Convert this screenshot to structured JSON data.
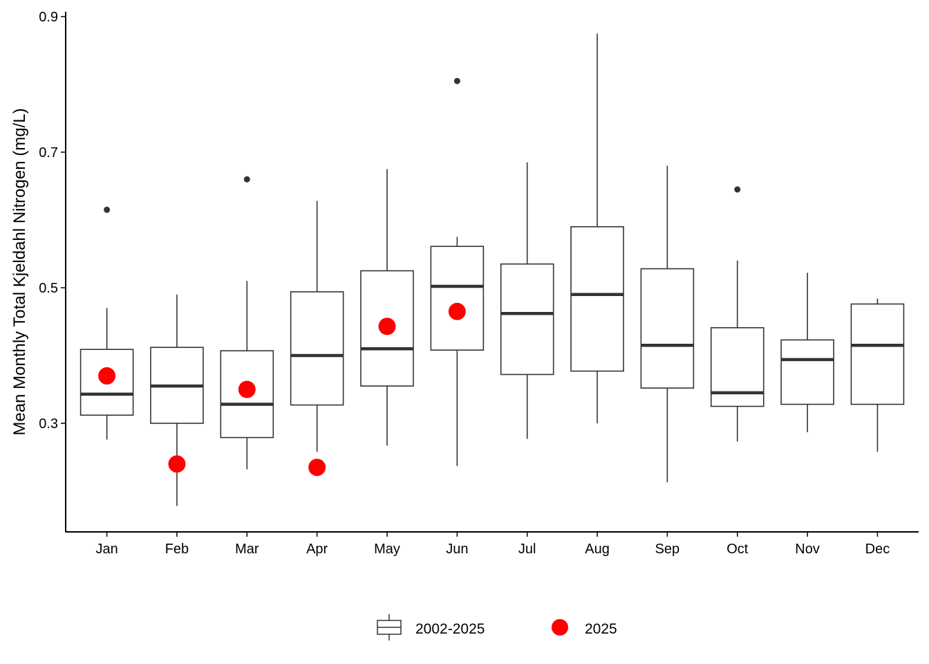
{
  "chart_data": {
    "type": "boxplot",
    "title": "",
    "xlabel": "",
    "ylabel": "Mean Monthly Total Kjeldahl Nitrogen (mg/L)",
    "ylim": [
      0.14,
      0.9
    ],
    "yticks": [
      0.3,
      0.5,
      0.7,
      0.9
    ],
    "ytick_labels": [
      "0.3",
      "0.5",
      "0.7",
      "0.9"
    ],
    "grid": false,
    "legend_position": "bottom",
    "categories": [
      "Jan",
      "Feb",
      "Mar",
      "Apr",
      "May",
      "Jun",
      "Jul",
      "Aug",
      "Sep",
      "Oct",
      "Nov",
      "Dec"
    ],
    "series": [
      {
        "name": "2002-2025",
        "kind": "boxplot",
        "color": "#333333",
        "boxes": [
          {
            "min": 0.276,
            "q1": 0.312,
            "median": 0.343,
            "q3": 0.409,
            "max": 0.47,
            "outliers": [
              0.615
            ]
          },
          {
            "min": 0.178,
            "q1": 0.3,
            "median": 0.355,
            "q3": 0.412,
            "max": 0.49,
            "outliers": []
          },
          {
            "min": 0.232,
            "q1": 0.279,
            "median": 0.328,
            "q3": 0.407,
            "max": 0.51,
            "outliers": [
              0.66
            ]
          },
          {
            "min": 0.258,
            "q1": 0.327,
            "median": 0.4,
            "q3": 0.494,
            "max": 0.628,
            "outliers": []
          },
          {
            "min": 0.267,
            "q1": 0.355,
            "median": 0.41,
            "q3": 0.525,
            "max": 0.675,
            "outliers": []
          },
          {
            "min": 0.237,
            "q1": 0.408,
            "median": 0.502,
            "q3": 0.561,
            "max": 0.575,
            "outliers": [
              0.805
            ]
          },
          {
            "min": 0.277,
            "q1": 0.372,
            "median": 0.462,
            "q3": 0.535,
            "max": 0.685,
            "outliers": []
          },
          {
            "min": 0.3,
            "q1": 0.377,
            "median": 0.49,
            "q3": 0.59,
            "max": 0.875,
            "outliers": []
          },
          {
            "min": 0.213,
            "q1": 0.352,
            "median": 0.415,
            "q3": 0.528,
            "max": 0.68,
            "outliers": []
          },
          {
            "min": 0.273,
            "q1": 0.325,
            "median": 0.345,
            "q3": 0.441,
            "max": 0.54,
            "outliers": [
              0.645
            ]
          },
          {
            "min": 0.287,
            "q1": 0.328,
            "median": 0.394,
            "q3": 0.423,
            "max": 0.522,
            "outliers": []
          },
          {
            "min": 0.258,
            "q1": 0.328,
            "median": 0.415,
            "q3": 0.476,
            "max": 0.484,
            "outliers": []
          }
        ]
      },
      {
        "name": "2025",
        "kind": "points",
        "color": "#ff0000",
        "values": [
          0.37,
          0.24,
          0.35,
          0.235,
          0.443,
          0.465,
          null,
          null,
          null,
          null,
          null,
          null
        ]
      }
    ]
  }
}
